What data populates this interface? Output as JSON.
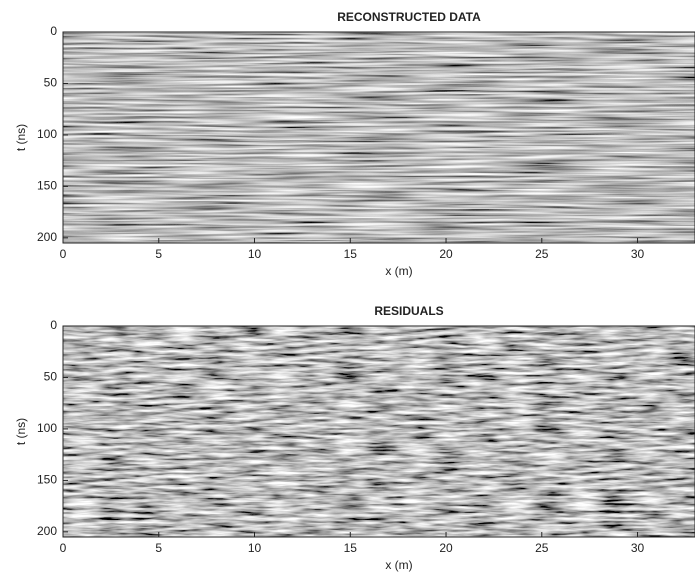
{
  "chart_data": [
    {
      "type": "image",
      "title": "RECONSTRUCTED DATA",
      "xlabel": "x (m)",
      "ylabel": "t (ns)",
      "xlim": [
        0,
        33
      ],
      "ylim": [
        205,
        0
      ],
      "xticks": [
        0,
        5,
        10,
        15,
        20,
        25,
        30
      ],
      "yticks": [
        0,
        50,
        100,
        150,
        200
      ]
    },
    {
      "type": "image",
      "title": "RESIDUALS",
      "xlabel": "x (m)",
      "ylabel": "t (ns)",
      "xlim": [
        0,
        33
      ],
      "ylim": [
        205,
        0
      ],
      "xticks": [
        0,
        5,
        10,
        15,
        20,
        25,
        30
      ],
      "yticks": [
        0,
        50,
        100,
        150,
        200
      ]
    }
  ]
}
